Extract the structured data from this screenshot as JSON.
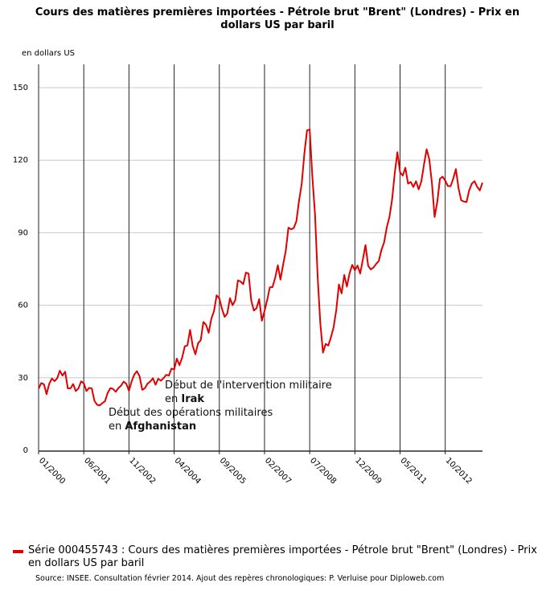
{
  "chart_data": {
    "type": "line",
    "title": "Cours des matières premières importées - Pétrole brut \"Brent\" (Londres) - Prix en dollars US par baril",
    "ylabel": "en dollars US",
    "ylim": [
      0,
      155
    ],
    "yticks": [
      0,
      30,
      60,
      90,
      120,
      150
    ],
    "xticks": [
      "01/2000",
      "06/2001",
      "11/2002",
      "04/2004",
      "09/2005",
      "02/2007",
      "07/2008",
      "12/2009",
      "05/2011",
      "10/2012"
    ],
    "grid": true,
    "legend_position": "bottom",
    "series": [
      {
        "name": "Série 000455743 : Cours des matières premières importées - Pétrole brut \"Brent\" (Londres) - Prix en dollars US par baril",
        "color": "#e00000",
        "start": "2000-01",
        "values": [
          25.5,
          27.8,
          27.3,
          23.2,
          27.5,
          29.7,
          28.6,
          29.8,
          32.9,
          30.9,
          32.5,
          25.6,
          25.6,
          27.4,
          24.5,
          25.6,
          28.5,
          27.7,
          24.5,
          25.8,
          25.6,
          20.5,
          18.8,
          18.6,
          19.5,
          20.3,
          23.8,
          25.7,
          25.4,
          24.2,
          25.7,
          26.7,
          28.4,
          27.5,
          24.6,
          28.5,
          31.3,
          32.7,
          30.6,
          25.0,
          25.7,
          27.6,
          28.4,
          29.8,
          27.1,
          29.6,
          28.8,
          29.8,
          31.2,
          30.9,
          33.8,
          33.4,
          37.9,
          35.2,
          38.3,
          43.0,
          43.4,
          49.8,
          43.1,
          39.7,
          44.3,
          45.5,
          53.1,
          51.9,
          48.6,
          54.4,
          57.6,
          64.1,
          62.8,
          58.5,
          55.2,
          56.6,
          62.9,
          60.0,
          62.1,
          70.3,
          69.8,
          68.7,
          73.5,
          73.1,
          62.0,
          57.8,
          58.8,
          62.5,
          53.6,
          57.6,
          62.1,
          67.4,
          67.5,
          71.3,
          76.5,
          70.6,
          76.8,
          82.5,
          92.1,
          91.4,
          91.9,
          94.8,
          103.3,
          110.2,
          122.8,
          132.3,
          132.7,
          113.2,
          97.7,
          71.6,
          52.5,
          40.4,
          44.0,
          43.3,
          46.8,
          50.9,
          58.0,
          68.6,
          64.9,
          72.5,
          67.7,
          73.2,
          76.7,
          74.5,
          76.4,
          73.1,
          78.9,
          84.9,
          76.3,
          74.8,
          75.6,
          77.1,
          78.3,
          82.9,
          86.0,
          92.2,
          96.5,
          103.7,
          114.6,
          123.3,
          115.0,
          113.6,
          116.9,
          110.3,
          111.0,
          108.9,
          111.3,
          107.9,
          111.2,
          118.2,
          124.5,
          120.3,
          110.4,
          96.5,
          102.7,
          112.3,
          113.2,
          111.5,
          109.3,
          109.2,
          112.3,
          116.3,
          108.4,
          103.4,
          102.9,
          102.7,
          107.5,
          110.3,
          111.3,
          109.0,
          107.5,
          110.7
        ]
      }
    ]
  },
  "annotations": [
    {
      "line1": "Début de l'intervention militaire",
      "prefix2": "en ",
      "bold2": "Irak"
    },
    {
      "line1": "Début des opérations militaires",
      "prefix2": "en ",
      "bold2": "Afghanistan"
    }
  ],
  "legend_label": "Série 000455743 : Cours des matières premières importées - Pétrole brut \"Brent\" (Londres) - Prix en dollars US par baril",
  "source": "Source: INSEE. Consultation février 2014. Ajout des repères chronologiques: P. Verluise pour Diploweb.com"
}
